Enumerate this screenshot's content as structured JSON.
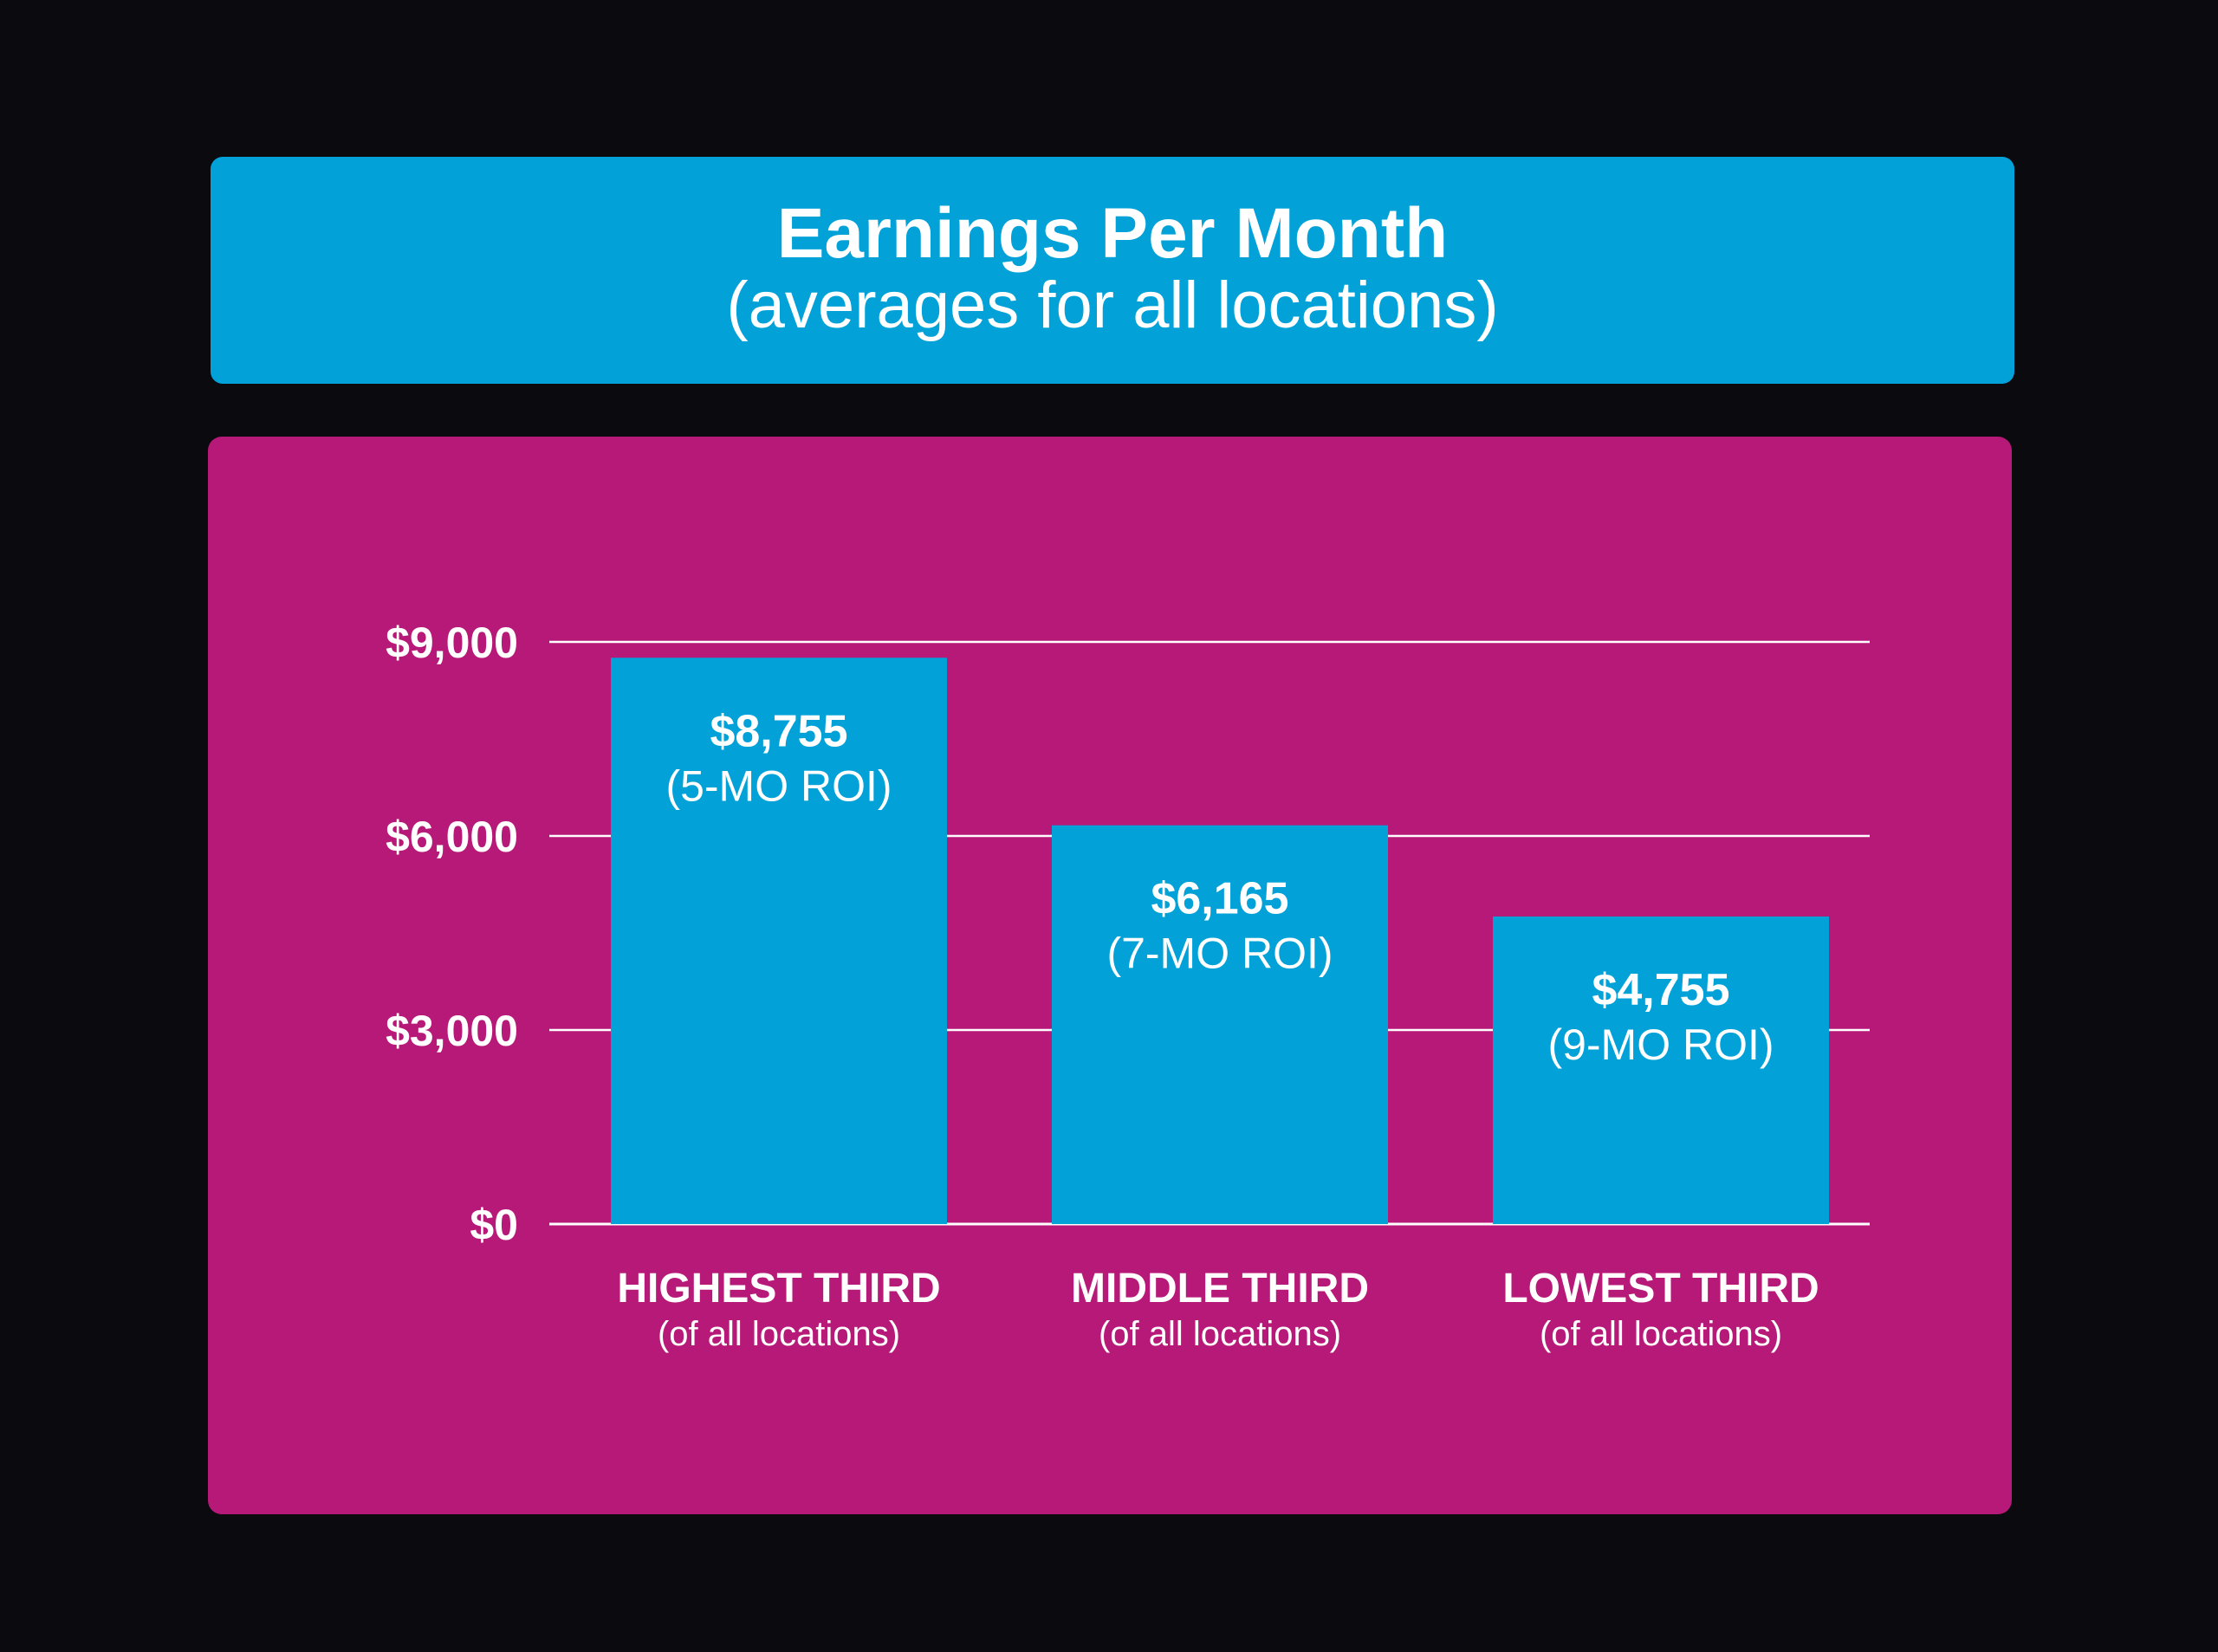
{
  "header": {
    "title": "Earnings Per Month",
    "subtitle": "(averages for all locations)"
  },
  "colors": {
    "background": "#0b0b0f",
    "header_bg": "#02a1d8",
    "panel_bg": "#b71978",
    "bar": "#02a1d8",
    "text": "#ffffff",
    "grid": "#ffffff"
  },
  "chart_data": {
    "type": "bar",
    "categories": [
      "HIGHEST THIRD",
      "MIDDLE THIRD",
      "LOWEST THIRD"
    ],
    "category_sublabels": [
      "(of all locations)",
      "(of all locations)",
      "(of all locations)"
    ],
    "values": [
      8755,
      6165,
      4755
    ],
    "data_labels": [
      "$8,755",
      "$6,165",
      "$4,755"
    ],
    "data_sublabels": [
      "(5-MO ROI)",
      "(7-MO ROI)",
      "(9-MO ROI)"
    ],
    "yticks": [
      0,
      3000,
      6000,
      9000
    ],
    "ytick_labels": [
      "$0",
      "$3,000",
      "$6,000",
      "$9,000"
    ],
    "ylim": [
      0,
      9000
    ],
    "grid": true,
    "legend": "none"
  }
}
